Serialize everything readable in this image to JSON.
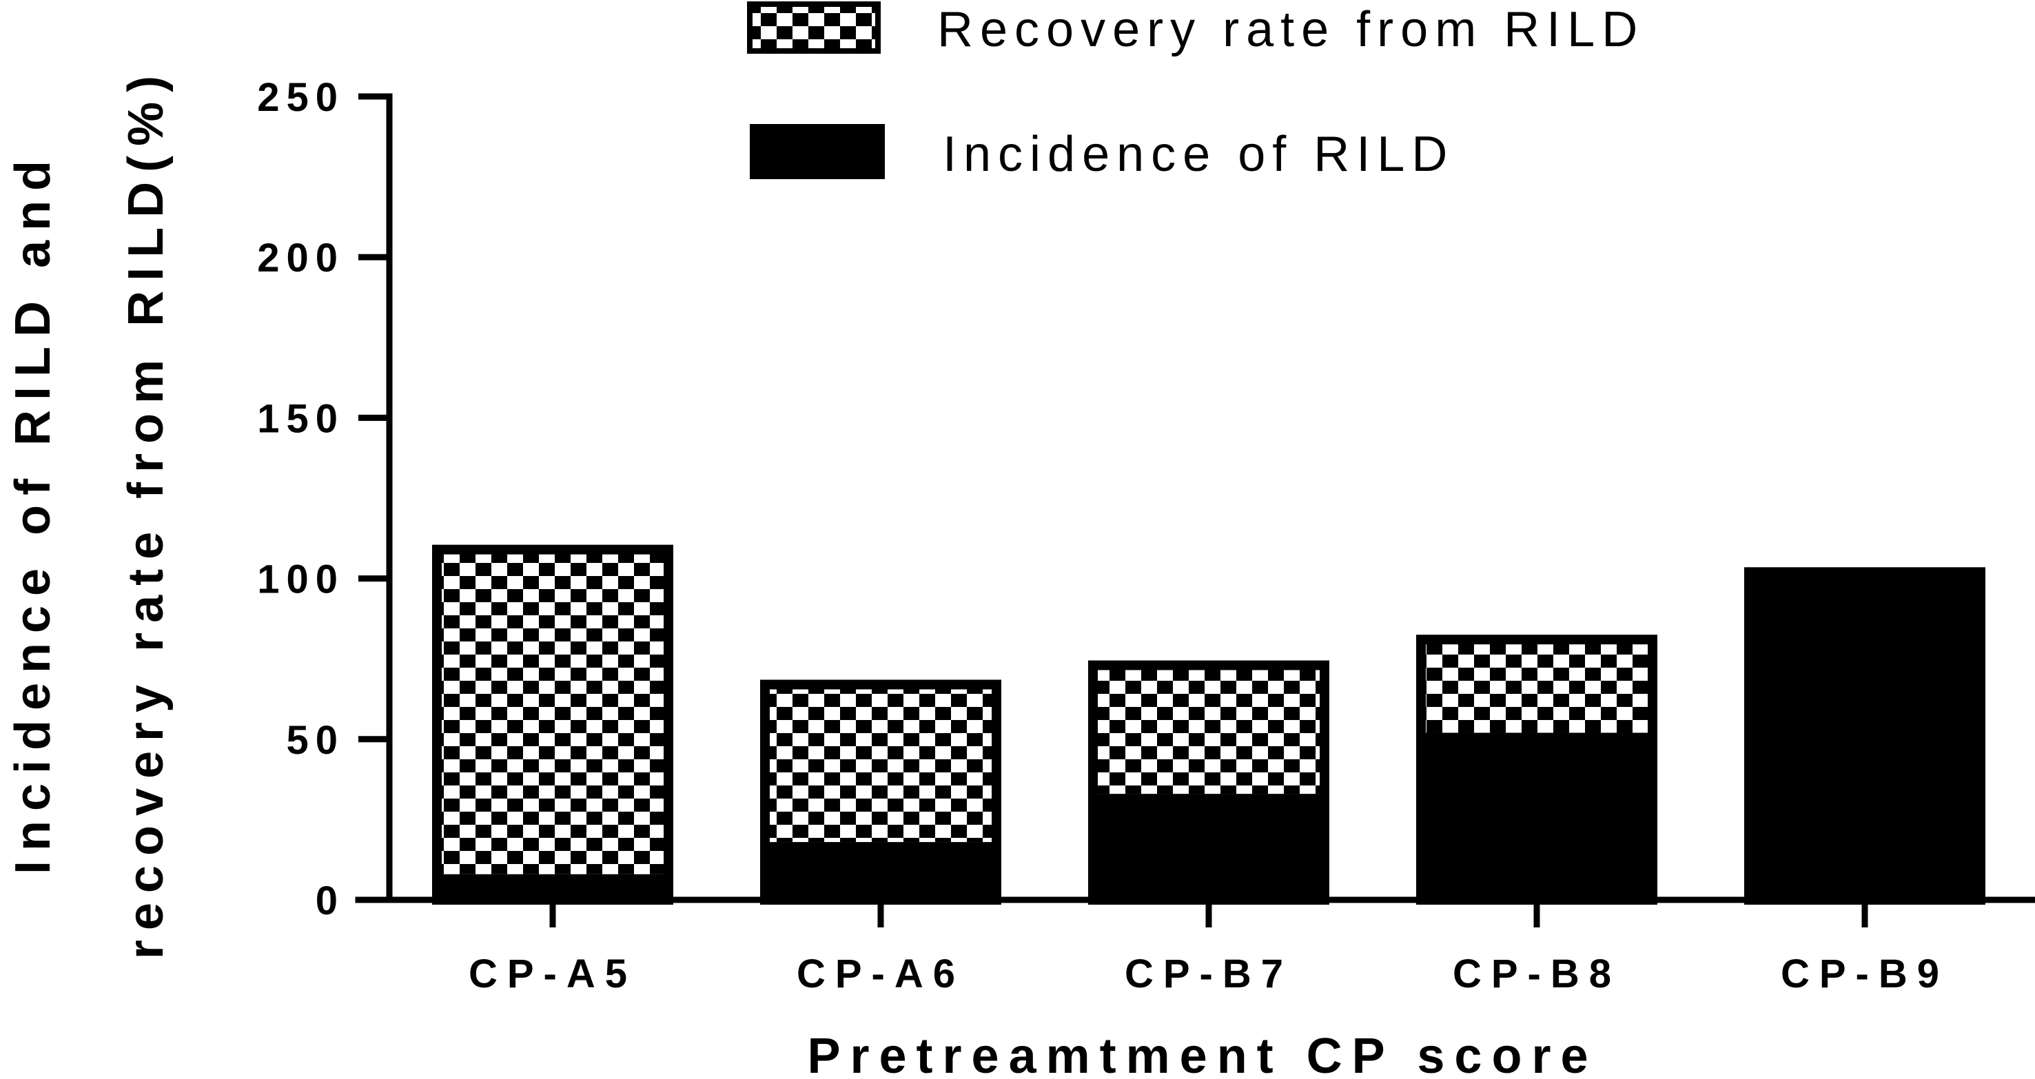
{
  "chart_data": {
    "type": "bar",
    "stacked": true,
    "categories": [
      "CP-A5",
      "CP-A6",
      "CP-B7",
      "CP-B8",
      "CP-B9"
    ],
    "series": [
      {
        "name": "Incidence of RILD",
        "pattern": "solid",
        "color": "#000000",
        "values": [
          8,
          18,
          33,
          52,
          102
        ]
      },
      {
        "name": "Recovery rate from RILD",
        "pattern": "checkerboard",
        "color": "#000000",
        "values": [
          101,
          49,
          40,
          29,
          0
        ]
      }
    ],
    "xlabel": "Pretreamtment CP score",
    "ylabel_lines": [
      "Incidence of RILD and",
      "recovery rate from RILD(%)"
    ],
    "ylim": [
      0,
      250
    ],
    "yticks": [
      0,
      50,
      100,
      150,
      200,
      250
    ],
    "grid": false,
    "legend_position": "top-center"
  }
}
